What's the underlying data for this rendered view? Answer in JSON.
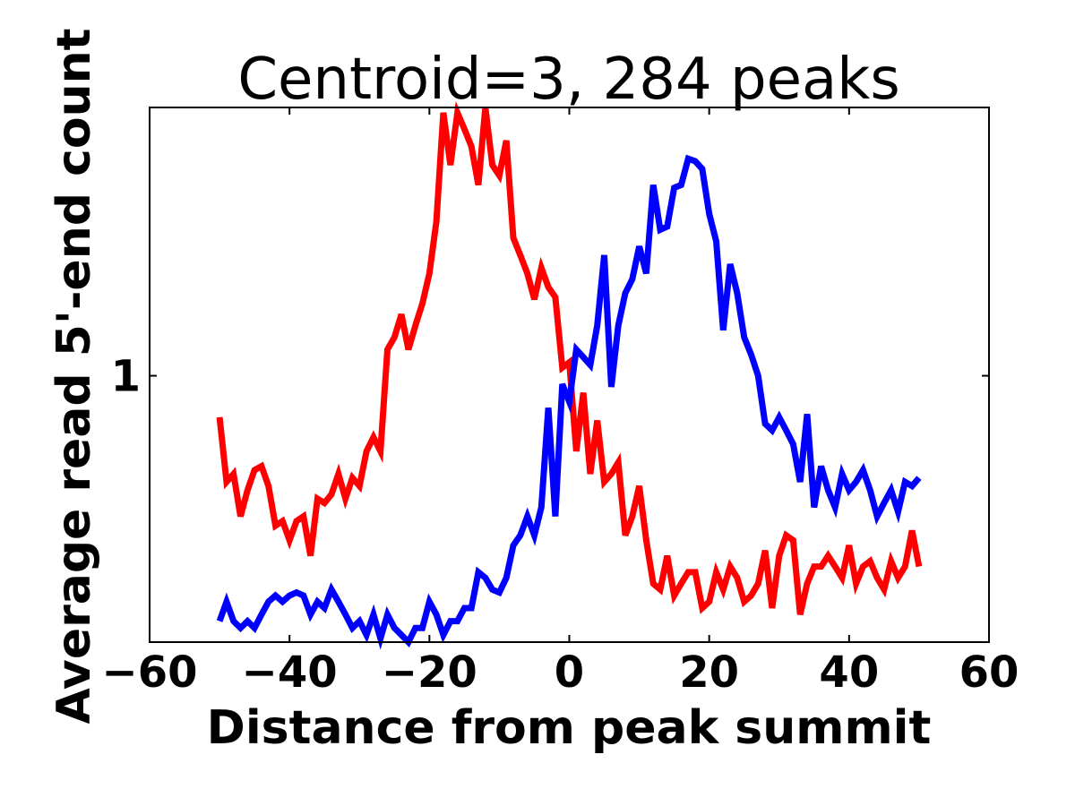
{
  "chart_data": {
    "type": "line",
    "title": "Centroid=3, 284 peaks",
    "xlabel": "Distance from peak summit",
    "ylabel": "Average read 5'-end count",
    "xlim": [
      -60,
      60
    ],
    "ylim": [
      0.38,
      2.65
    ],
    "y_scale": "log",
    "x_ticks": [
      -60,
      -40,
      -20,
      0,
      20,
      40,
      60
    ],
    "x_tick_labels": [
      "−60",
      "−40",
      "−20",
      "0",
      "20",
      "40",
      "60"
    ],
    "y_ticks": [
      1
    ],
    "y_tick_labels": [
      "1"
    ],
    "grid": false,
    "legend": "none",
    "x": [
      -50,
      -49,
      -48,
      -47,
      -46,
      -45,
      -44,
      -43,
      -42,
      -41,
      -40,
      -39,
      -38,
      -37,
      -36,
      -35,
      -34,
      -33,
      -32,
      -31,
      -30,
      -29,
      -28,
      -27,
      -26,
      -25,
      -24,
      -23,
      -22,
      -21,
      -20,
      -19,
      -18,
      -17,
      -16,
      -15,
      -14,
      -13,
      -12,
      -11,
      -10,
      -9,
      -8,
      -7,
      -6,
      -5,
      -4,
      -3,
      -2,
      -1,
      0,
      1,
      2,
      3,
      4,
      5,
      6,
      7,
      8,
      9,
      10,
      11,
      12,
      13,
      14,
      15,
      16,
      17,
      18,
      19,
      20,
      21,
      22,
      23,
      24,
      25,
      26,
      27,
      28,
      29,
      30,
      31,
      32,
      33,
      34,
      35,
      36,
      37,
      38,
      39,
      40,
      41,
      42,
      43,
      44,
      45,
      46,
      47,
      48,
      49,
      50
    ],
    "series": [
      {
        "color": "#ff0000",
        "values": [
          0.86,
          0.68,
          0.7,
          0.6,
          0.66,
          0.71,
          0.72,
          0.67,
          0.58,
          0.59,
          0.55,
          0.59,
          0.6,
          0.52,
          0.64,
          0.63,
          0.65,
          0.7,
          0.64,
          0.69,
          0.67,
          0.76,
          0.8,
          0.76,
          1.1,
          1.15,
          1.25,
          1.1,
          1.2,
          1.3,
          1.45,
          1.75,
          2.6,
          2.15,
          2.6,
          2.45,
          2.3,
          2.0,
          2.65,
          2.15,
          2.07,
          2.35,
          1.65,
          1.55,
          1.45,
          1.32,
          1.48,
          1.38,
          1.33,
          1.03,
          1.05,
          0.76,
          0.94,
          0.7,
          0.85,
          0.68,
          0.7,
          0.73,
          0.56,
          0.6,
          0.67,
          0.55,
          0.47,
          0.46,
          0.52,
          0.45,
          0.47,
          0.49,
          0.49,
          0.43,
          0.44,
          0.49,
          0.46,
          0.5,
          0.48,
          0.44,
          0.45,
          0.47,
          0.53,
          0.43,
          0.52,
          0.56,
          0.55,
          0.42,
          0.47,
          0.5,
          0.5,
          0.52,
          0.5,
          0.48,
          0.54,
          0.47,
          0.5,
          0.51,
          0.48,
          0.46,
          0.51,
          0.48,
          0.5,
          0.57,
          0.5
        ]
      },
      {
        "color": "#0000ff",
        "values": [
          0.41,
          0.44,
          0.41,
          0.4,
          0.41,
          0.4,
          0.42,
          0.44,
          0.45,
          0.44,
          0.45,
          0.455,
          0.45,
          0.42,
          0.44,
          0.43,
          0.46,
          0.44,
          0.42,
          0.4,
          0.41,
          0.39,
          0.42,
          0.385,
          0.42,
          0.4,
          0.39,
          0.38,
          0.4,
          0.4,
          0.44,
          0.42,
          0.39,
          0.41,
          0.41,
          0.43,
          0.43,
          0.49,
          0.48,
          0.46,
          0.455,
          0.48,
          0.54,
          0.56,
          0.6,
          0.56,
          0.62,
          0.89,
          0.6,
          0.97,
          0.91,
          1.1,
          1.07,
          1.04,
          1.2,
          1.55,
          0.96,
          1.2,
          1.35,
          1.42,
          1.6,
          1.45,
          2.0,
          1.7,
          1.72,
          1.98,
          2.0,
          2.2,
          2.18,
          2.12,
          1.8,
          1.63,
          1.18,
          1.5,
          1.35,
          1.15,
          1.08,
          1.0,
          0.84,
          0.82,
          0.86,
          0.82,
          0.78,
          0.68,
          0.87,
          0.62,
          0.72,
          0.66,
          0.62,
          0.7,
          0.66,
          0.68,
          0.71,
          0.66,
          0.6,
          0.63,
          0.66,
          0.61,
          0.68,
          0.67,
          0.69
        ]
      }
    ]
  }
}
